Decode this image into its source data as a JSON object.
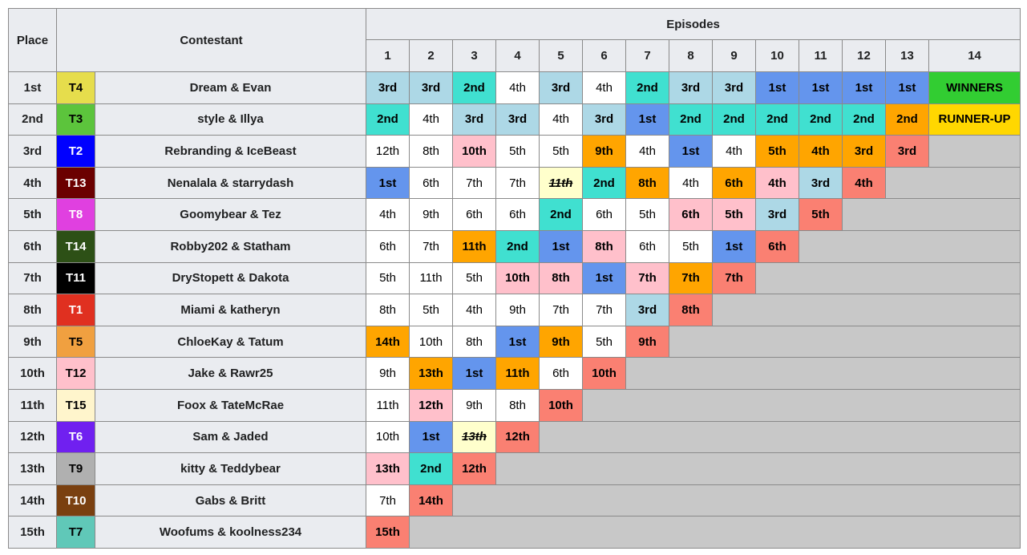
{
  "table": {
    "headers": {
      "place": "Place",
      "contestant": "Contestant",
      "episodes": "Episodes",
      "episode_numbers": [
        1,
        2,
        3,
        4,
        5,
        6,
        7,
        8,
        9,
        10,
        11,
        12,
        13,
        14
      ]
    },
    "empty_color": "#c8c8c8",
    "rows": [
      {
        "place": "1st",
        "team": "T4",
        "team_color": "#e6dd4c",
        "team_text_color": "#000000",
        "name": "Dream & Evan",
        "results": [
          {
            "text": "3rd",
            "color": "#add8e6"
          },
          {
            "text": "3rd",
            "color": "#add8e6"
          },
          {
            "text": "2nd",
            "color": "#40e0d0"
          },
          {
            "text": "4th",
            "color": "#ffffff"
          },
          {
            "text": "3rd",
            "color": "#add8e6"
          },
          {
            "text": "4th",
            "color": "#ffffff"
          },
          {
            "text": "2nd",
            "color": "#40e0d0"
          },
          {
            "text": "3rd",
            "color": "#add8e6"
          },
          {
            "text": "3rd",
            "color": "#add8e6"
          },
          {
            "text": "1st",
            "color": "#6495ed"
          },
          {
            "text": "1st",
            "color": "#6495ed"
          },
          {
            "text": "1st",
            "color": "#6495ed"
          },
          {
            "text": "1st",
            "color": "#6495ed"
          },
          {
            "text": "WINNERS",
            "color": "#32cd32"
          }
        ]
      },
      {
        "place": "2nd",
        "team": "T3",
        "team_color": "#5cc43c",
        "team_text_color": "#000000",
        "name": "style & Illya",
        "results": [
          {
            "text": "2nd",
            "color": "#40e0d0"
          },
          {
            "text": "4th",
            "color": "#ffffff"
          },
          {
            "text": "3rd",
            "color": "#add8e6"
          },
          {
            "text": "3rd",
            "color": "#add8e6"
          },
          {
            "text": "4th",
            "color": "#ffffff"
          },
          {
            "text": "3rd",
            "color": "#add8e6"
          },
          {
            "text": "1st",
            "color": "#6495ed"
          },
          {
            "text": "2nd",
            "color": "#40e0d0"
          },
          {
            "text": "2nd",
            "color": "#40e0d0"
          },
          {
            "text": "2nd",
            "color": "#40e0d0"
          },
          {
            "text": "2nd",
            "color": "#40e0d0"
          },
          {
            "text": "2nd",
            "color": "#40e0d0"
          },
          {
            "text": "2nd",
            "color": "#ffa500"
          },
          {
            "text": "RUNNER-UP",
            "color": "#ffd700"
          }
        ]
      },
      {
        "place": "3rd",
        "team": "T2",
        "team_color": "#0000ff",
        "team_text_color": "#ffffff",
        "name": "Rebranding & IceBeast",
        "results": [
          {
            "text": "12th",
            "color": "#ffffff"
          },
          {
            "text": "8th",
            "color": "#ffffff"
          },
          {
            "text": "10th",
            "color": "#ffc0cb"
          },
          {
            "text": "5th",
            "color": "#ffffff"
          },
          {
            "text": "5th",
            "color": "#ffffff"
          },
          {
            "text": "9th",
            "color": "#ffa500"
          },
          {
            "text": "4th",
            "color": "#ffffff"
          },
          {
            "text": "1st",
            "color": "#6495ed"
          },
          {
            "text": "4th",
            "color": "#ffffff"
          },
          {
            "text": "5th",
            "color": "#ffa500"
          },
          {
            "text": "4th",
            "color": "#ffa500"
          },
          {
            "text": "3rd",
            "color": "#ffa500"
          },
          {
            "text": "3rd",
            "color": "#fa8072"
          }
        ]
      },
      {
        "place": "4th",
        "team": "T13",
        "team_color": "#6b0000",
        "team_text_color": "#ffffff",
        "name": "Nenalala & starrydash",
        "results": [
          {
            "text": "1st",
            "color": "#6495ed"
          },
          {
            "text": "6th",
            "color": "#ffffff"
          },
          {
            "text": "7th",
            "color": "#ffffff"
          },
          {
            "text": "7th",
            "color": "#ffffff"
          },
          {
            "text": "11th",
            "color": "#ffffcc",
            "struck": true
          },
          {
            "text": "2nd",
            "color": "#40e0d0"
          },
          {
            "text": "8th",
            "color": "#ffa500"
          },
          {
            "text": "4th",
            "color": "#ffffff"
          },
          {
            "text": "6th",
            "color": "#ffa500"
          },
          {
            "text": "4th",
            "color": "#ffc0cb"
          },
          {
            "text": "3rd",
            "color": "#add8e6"
          },
          {
            "text": "4th",
            "color": "#fa8072"
          }
        ]
      },
      {
        "place": "5th",
        "team": "T8",
        "team_color": "#e040e0",
        "team_text_color": "#ffffff",
        "name": "Goomybear & Tez",
        "results": [
          {
            "text": "4th",
            "color": "#ffffff"
          },
          {
            "text": "9th",
            "color": "#ffffff"
          },
          {
            "text": "6th",
            "color": "#ffffff"
          },
          {
            "text": "6th",
            "color": "#ffffff"
          },
          {
            "text": "2nd",
            "color": "#40e0d0"
          },
          {
            "text": "6th",
            "color": "#ffffff"
          },
          {
            "text": "5th",
            "color": "#ffffff"
          },
          {
            "text": "6th",
            "color": "#ffc0cb"
          },
          {
            "text": "5th",
            "color": "#ffc0cb"
          },
          {
            "text": "3rd",
            "color": "#add8e6"
          },
          {
            "text": "5th",
            "color": "#fa8072"
          }
        ]
      },
      {
        "place": "6th",
        "team": "T14",
        "team_color": "#2d5016",
        "team_text_color": "#ffffff",
        "name": "Robby202 & Statham",
        "results": [
          {
            "text": "6th",
            "color": "#ffffff"
          },
          {
            "text": "7th",
            "color": "#ffffff"
          },
          {
            "text": "11th",
            "color": "#ffa500"
          },
          {
            "text": "2nd",
            "color": "#40e0d0"
          },
          {
            "text": "1st",
            "color": "#6495ed"
          },
          {
            "text": "8th",
            "color": "#ffc0cb"
          },
          {
            "text": "6th",
            "color": "#ffffff"
          },
          {
            "text": "5th",
            "color": "#ffffff"
          },
          {
            "text": "1st",
            "color": "#6495ed"
          },
          {
            "text": "6th",
            "color": "#fa8072"
          }
        ]
      },
      {
        "place": "7th",
        "team": "T11",
        "team_color": "#000000",
        "team_text_color": "#ffffff",
        "name": "DryStopett & Dakota",
        "results": [
          {
            "text": "5th",
            "color": "#ffffff"
          },
          {
            "text": "11th",
            "color": "#ffffff"
          },
          {
            "text": "5th",
            "color": "#ffffff"
          },
          {
            "text": "10th",
            "color": "#ffc0cb"
          },
          {
            "text": "8th",
            "color": "#ffc0cb"
          },
          {
            "text": "1st",
            "color": "#6495ed"
          },
          {
            "text": "7th",
            "color": "#ffc0cb"
          },
          {
            "text": "7th",
            "color": "#ffa500"
          },
          {
            "text": "7th",
            "color": "#fa8072"
          }
        ]
      },
      {
        "place": "8th",
        "team": "T1",
        "team_color": "#e03020",
        "team_text_color": "#ffffff",
        "name": "Miami & katheryn",
        "results": [
          {
            "text": "8th",
            "color": "#ffffff"
          },
          {
            "text": "5th",
            "color": "#ffffff"
          },
          {
            "text": "4th",
            "color": "#ffffff"
          },
          {
            "text": "9th",
            "color": "#ffffff"
          },
          {
            "text": "7th",
            "color": "#ffffff"
          },
          {
            "text": "7th",
            "color": "#ffffff"
          },
          {
            "text": "3rd",
            "color": "#add8e6"
          },
          {
            "text": "8th",
            "color": "#fa8072"
          }
        ]
      },
      {
        "place": "9th",
        "team": "T5",
        "team_color": "#f0a040",
        "team_text_color": "#000000",
        "name": "ChloeKay & Tatum",
        "results": [
          {
            "text": "14th",
            "color": "#ffa500"
          },
          {
            "text": "10th",
            "color": "#ffffff"
          },
          {
            "text": "8th",
            "color": "#ffffff"
          },
          {
            "text": "1st",
            "color": "#6495ed"
          },
          {
            "text": "9th",
            "color": "#ffa500"
          },
          {
            "text": "5th",
            "color": "#ffffff"
          },
          {
            "text": "9th",
            "color": "#fa8072"
          }
        ]
      },
      {
        "place": "10th",
        "team": "T12",
        "team_color": "#ffc0cb",
        "team_text_color": "#000000",
        "name": "Jake & Rawr25",
        "results": [
          {
            "text": "9th",
            "color": "#ffffff"
          },
          {
            "text": "13th",
            "color": "#ffa500"
          },
          {
            "text": "1st",
            "color": "#6495ed"
          },
          {
            "text": "11th",
            "color": "#ffa500"
          },
          {
            "text": "6th",
            "color": "#ffffff"
          },
          {
            "text": "10th",
            "color": "#fa8072"
          }
        ]
      },
      {
        "place": "11th",
        "team": "T15",
        "team_color": "#fff5cc",
        "team_text_color": "#000000",
        "name": "Foox & TateMcRae",
        "results": [
          {
            "text": "11th",
            "color": "#ffffff"
          },
          {
            "text": "12th",
            "color": "#ffc0cb"
          },
          {
            "text": "9th",
            "color": "#ffffff"
          },
          {
            "text": "8th",
            "color": "#ffffff"
          },
          {
            "text": "10th",
            "color": "#fa8072"
          }
        ]
      },
      {
        "place": "12th",
        "team": "T6",
        "team_color": "#7020f0",
        "team_text_color": "#ffffff",
        "name": "Sam & Jaded",
        "results": [
          {
            "text": "10th",
            "color": "#ffffff"
          },
          {
            "text": "1st",
            "color": "#6495ed"
          },
          {
            "text": "13th",
            "color": "#ffffcc",
            "struck": true
          },
          {
            "text": "12th",
            "color": "#fa8072"
          }
        ]
      },
      {
        "place": "13th",
        "team": "T9",
        "team_color": "#b0b0b0",
        "team_text_color": "#000000",
        "name": "kitty & Teddybear",
        "results": [
          {
            "text": "13th",
            "color": "#ffc0cb"
          },
          {
            "text": "2nd",
            "color": "#40e0d0"
          },
          {
            "text": "12th",
            "color": "#fa8072"
          }
        ]
      },
      {
        "place": "14th",
        "team": "T10",
        "team_color": "#7a4010",
        "team_text_color": "#ffffff",
        "name": "Gabs & Britt",
        "results": [
          {
            "text": "7th",
            "color": "#ffffff"
          },
          {
            "text": "14th",
            "color": "#fa8072"
          }
        ]
      },
      {
        "place": "15th",
        "team": "T7",
        "team_color": "#60c8b8",
        "team_text_color": "#000000",
        "name": "Woofums & koolness234",
        "results": [
          {
            "text": "15th",
            "color": "#fa8072"
          }
        ]
      }
    ]
  }
}
